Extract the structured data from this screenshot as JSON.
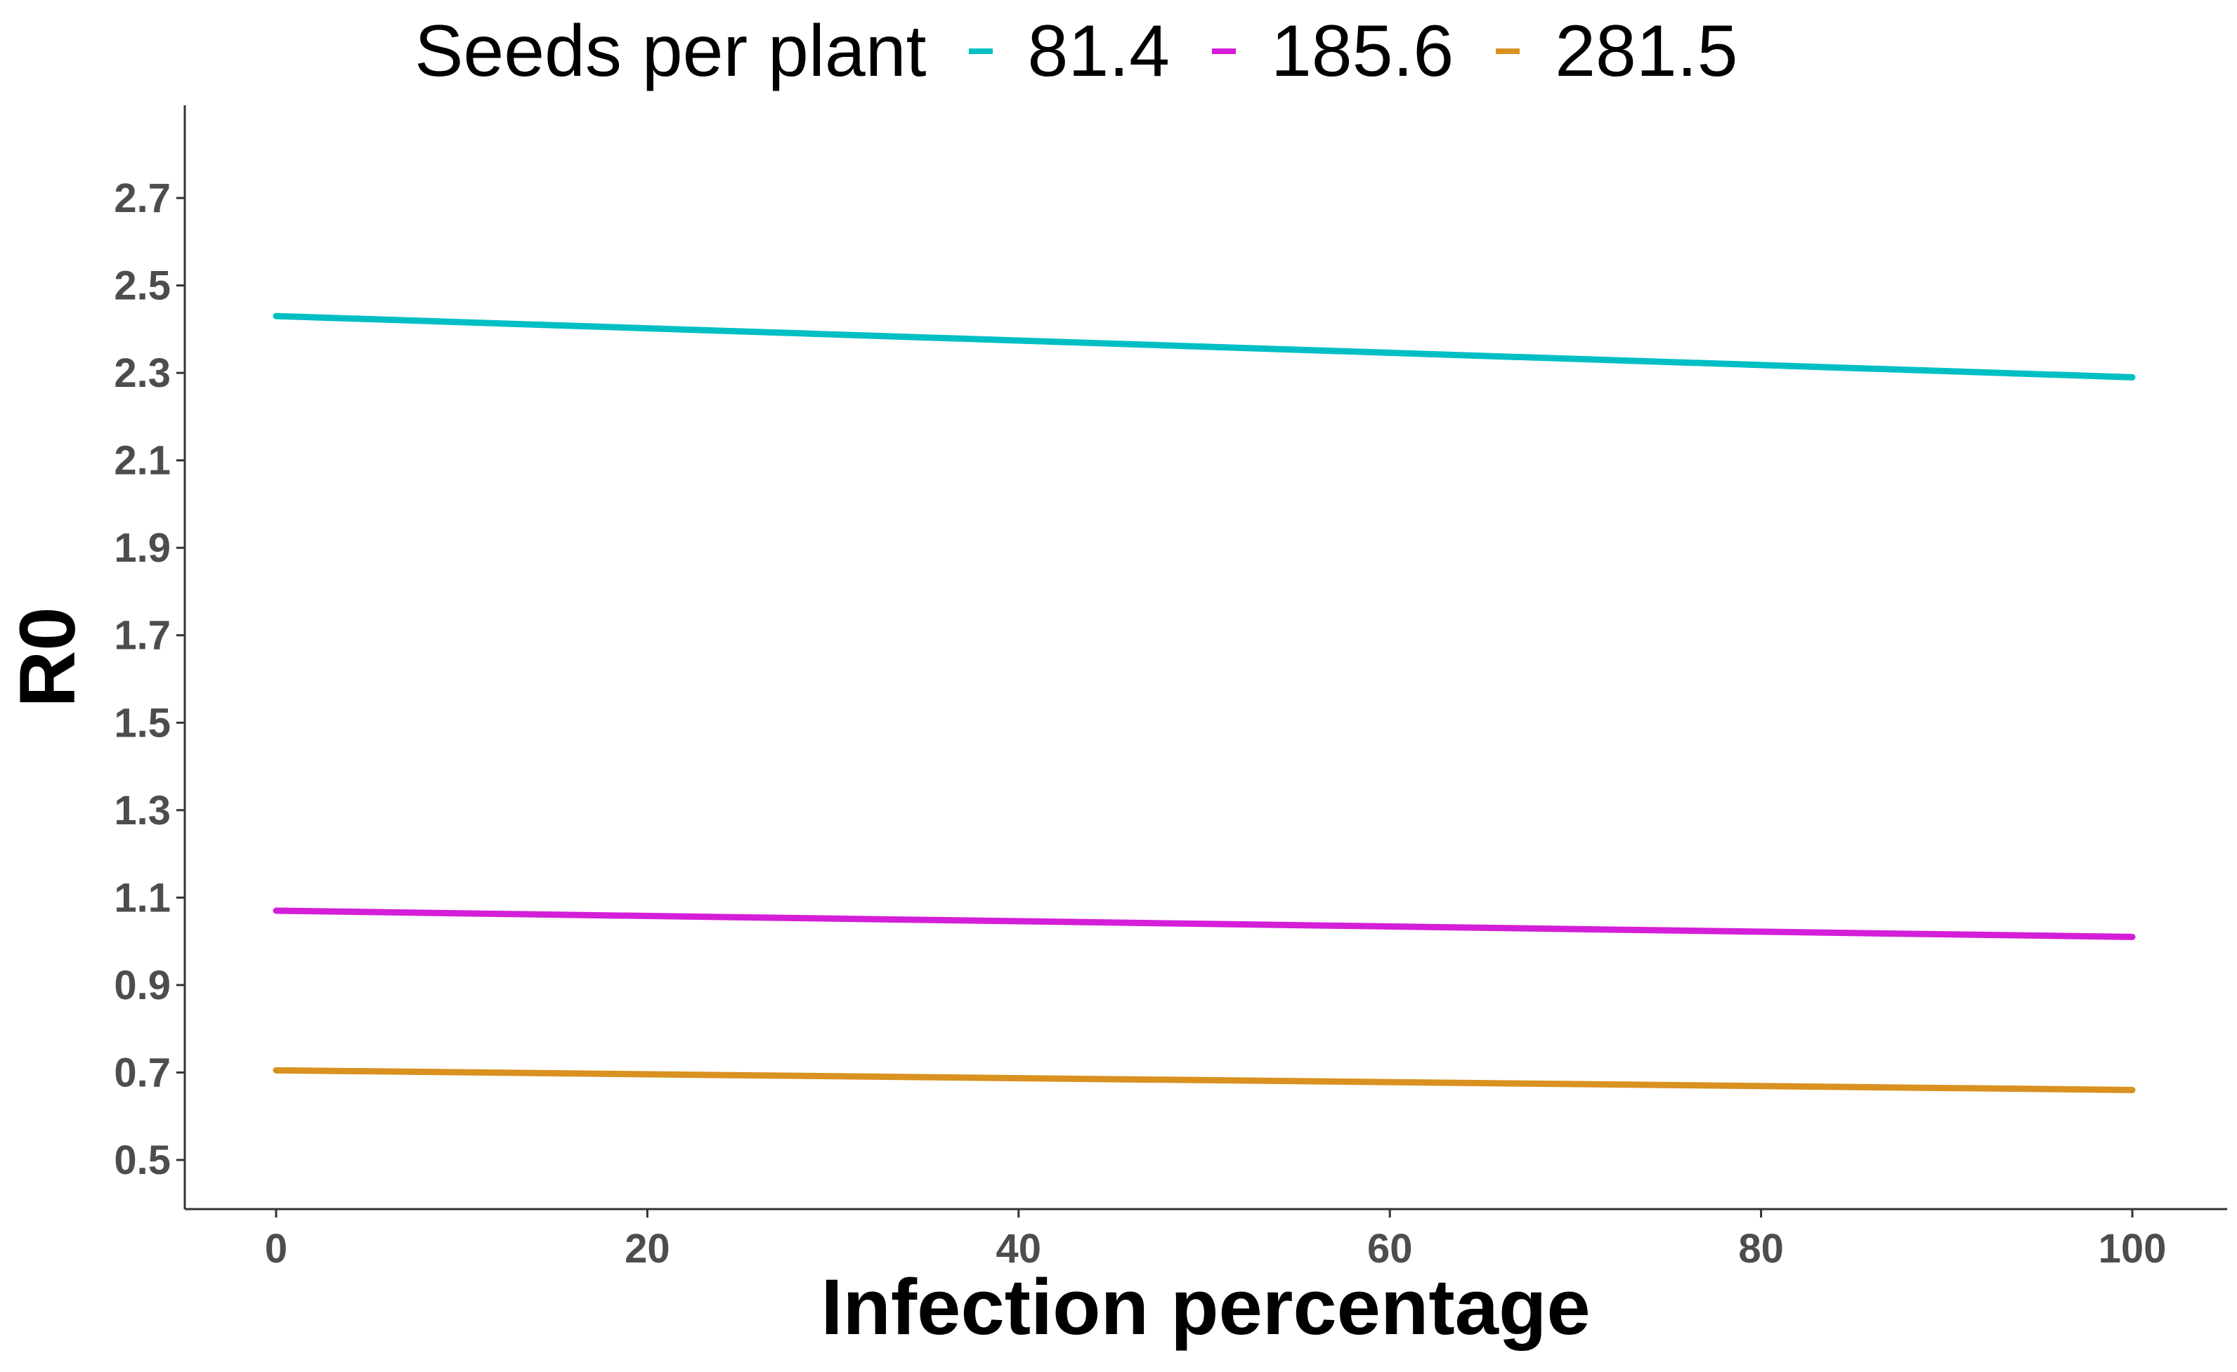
{
  "chart_data": {
    "type": "line",
    "title": "",
    "xlabel": "Infection percentage",
    "ylabel": "R0",
    "legend_title": "Seeds per plant",
    "legend_position": "top",
    "grid": false,
    "xlim": [
      -5,
      105
    ],
    "ylim": [
      0.38,
      2.9
    ],
    "x_ticks": [
      0,
      20,
      40,
      60,
      80,
      100
    ],
    "y_ticks": [
      0.5,
      0.7,
      0.9,
      1.1,
      1.3,
      1.5,
      1.7,
      1.9,
      2.1,
      2.3,
      2.5,
      2.7
    ],
    "x_tick_labels": [
      "0",
      "20",
      "40",
      "60",
      "80",
      "100"
    ],
    "y_tick_labels": [
      "0.5",
      "0.7",
      "0.9",
      "1.1",
      "1.3",
      "1.5",
      "1.7",
      "1.9",
      "2.1",
      "2.3",
      "2.5",
      "2.7"
    ],
    "series": [
      {
        "name": "81.4",
        "color": "#00bfc4",
        "x": [
          0,
          100
        ],
        "values": [
          2.43,
          2.29
        ]
      },
      {
        "name": "185.6",
        "color": "#d41ed8",
        "x": [
          0,
          100
        ],
        "values": [
          1.07,
          1.01
        ]
      },
      {
        "name": "281.5",
        "color": "#d99120",
        "x": [
          0,
          100
        ],
        "values": [
          0.705,
          0.66
        ]
      }
    ]
  }
}
